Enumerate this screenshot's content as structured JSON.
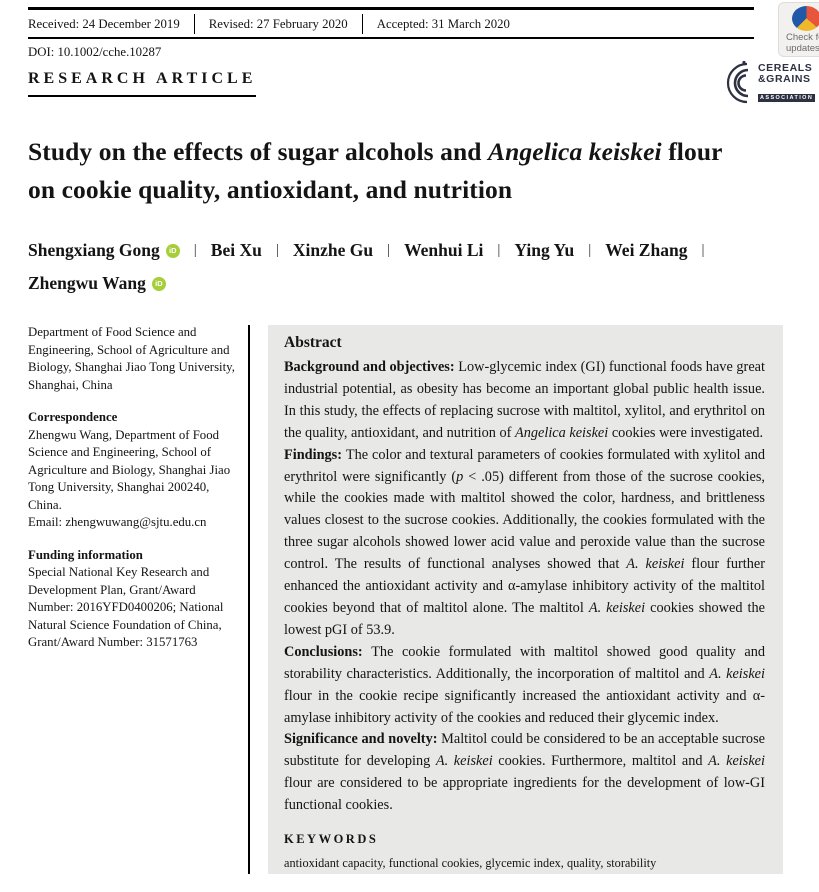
{
  "colors": {
    "abstract_bg": "#e8e8e6",
    "orcid_green": "#a6ce39",
    "logo_navy": "#2d3142",
    "crossmark_blue": "#2158a8",
    "crossmark_red": "#e8553d",
    "crossmark_yellow": "#f0b92b"
  },
  "meta": {
    "received": "Received: 24 December 2019",
    "revised": "Revised: 27 February 2020",
    "accepted": "Accepted: 31 March 2020",
    "doi": "DOI: 10.1002/cche.10287"
  },
  "badge": {
    "line1": "Check for",
    "line2": "updates"
  },
  "header": {
    "article_type": "RESEARCH ARTICLE",
    "logo_line1": "CEREALS",
    "logo_line2": "&GRAINS",
    "logo_line3": "ASSOCIATION"
  },
  "title": {
    "line1_segments": [
      {
        "t": "Study on the effects of sugar alcohols and "
      },
      {
        "t": "Angelica keiskei",
        "i": true
      },
      {
        "t": " flour"
      }
    ],
    "line2_segments": [
      {
        "t": "on cookie quality, antioxidant, and nutrition"
      }
    ]
  },
  "authors": {
    "separator": "|",
    "orcid_label": "iD",
    "list": [
      {
        "name": "Shengxiang Gong",
        "orcid": true
      },
      {
        "name": "Bei Xu"
      },
      {
        "name": "Xinzhe Gu"
      },
      {
        "name": "Wenhui Li"
      },
      {
        "name": "Ying Yu"
      },
      {
        "name": "Wei Zhang"
      },
      {
        "name": "Zhengwu Wang",
        "orcid": true
      }
    ]
  },
  "sidebar": {
    "affiliation": "Department of Food Science and Engineering, School of Agriculture and Biology, Shanghai Jiao Tong University, Shanghai, China",
    "correspondence_heading": "Correspondence",
    "correspondence_body": "Zhengwu Wang, Department of Food Science and Engineering, School of Agriculture and Biology, Shanghai Jiao Tong University, Shanghai 200240, China.",
    "email": "Email: zhengwuwang@sjtu.edu.cn",
    "funding_heading": "Funding information",
    "funding_body": "Special National Key Research and Development Plan, Grant/Award Number: 2016YFD0400206; National Natural Science Foundation of China, Grant/Award Number: 31571763"
  },
  "abstract": {
    "heading": "Abstract",
    "paragraphs": [
      {
        "segments": [
          {
            "t": "Background and objectives: ",
            "b": true
          },
          {
            "t": "Low-glycemic index (GI) functional foods have great industrial potential, as obesity has become an important global public health issue. In this study, the effects of replacing sucrose with maltitol, xylitol, and erythritol on the quality, antioxidant, and nutrition of "
          },
          {
            "t": "Angelica keiskei",
            "i": true
          },
          {
            "t": " cookies were investigated."
          }
        ]
      },
      {
        "segments": [
          {
            "t": "Findings: ",
            "b": true
          },
          {
            "t": "The color and textural parameters of cookies formulated with xylitol and erythritol were significantly ("
          },
          {
            "t": "p",
            "i": true
          },
          {
            "t": " < .05) different from those of the sucrose cookies, while the cookies made with maltitol showed the color, hardness, and brittleness values closest to the sucrose cookies. Additionally, the cookies formulated with the three sugar alcohols showed lower acid value and peroxide value than the sucrose control. The results of functional analyses showed that "
          },
          {
            "t": "A. keiskei",
            "i": true
          },
          {
            "t": " flour further enhanced the antioxidant activity and α-amylase inhibitory activity of the maltitol cookies beyond that of maltitol alone. The maltitol "
          },
          {
            "t": "A. keiskei",
            "i": true
          },
          {
            "t": " cookies showed the lowest pGI of 53.9."
          }
        ]
      },
      {
        "segments": [
          {
            "t": "Conclusions: ",
            "b": true
          },
          {
            "t": "The cookie formulated with maltitol showed good quality and storability characteristics. Additionally, the incorporation of maltitol and "
          },
          {
            "t": "A. keiskei",
            "i": true
          },
          {
            "t": " flour in the cookie recipe significantly increased the antioxidant activity and α-amylase inhibitory activity of the cookies and reduced their glycemic index."
          }
        ]
      },
      {
        "segments": [
          {
            "t": "Significance and novelty: ",
            "b": true
          },
          {
            "t": "Maltitol could be considered to be an acceptable sucrose substitute for developing "
          },
          {
            "t": "A. keiskei",
            "i": true
          },
          {
            "t": " cookies. Furthermore, maltitol and "
          },
          {
            "t": "A. keiskei",
            "i": true
          },
          {
            "t": " flour are considered to be appropriate ingredients for the development of low-GI functional cookies."
          }
        ]
      }
    ],
    "keywords_heading": "KEYWORDS",
    "keywords": "antioxidant capacity, functional cookies, glycemic index, quality, storability"
  }
}
